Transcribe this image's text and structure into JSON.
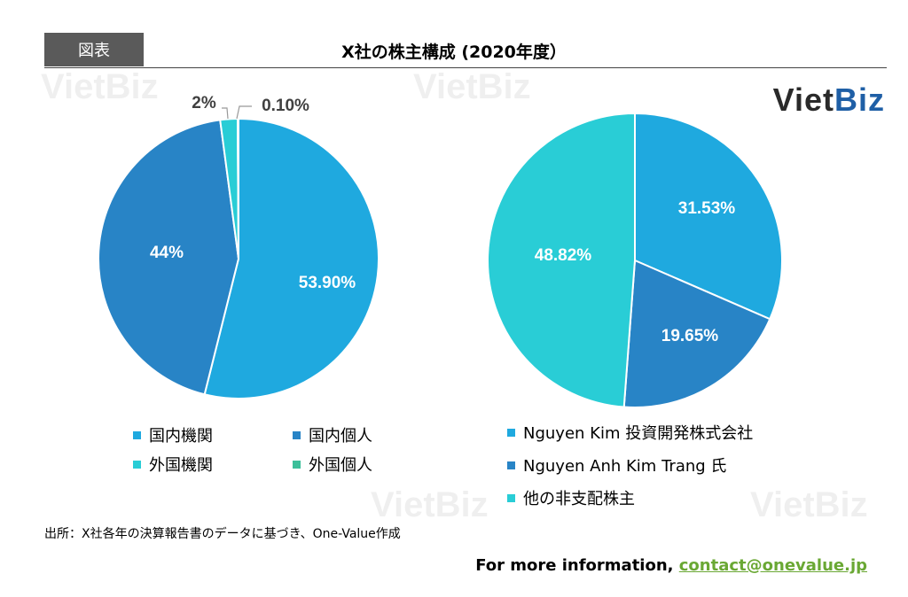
{
  "header": {
    "tag": "図表",
    "title": "X社の株主構成 (2020年度）"
  },
  "logo": {
    "part1": "Viet",
    "part2": "Biz"
  },
  "watermark": "VietBiz",
  "source": "出所：X社各年の決算報告書のデータに基づき、One-Value作成",
  "footer": {
    "text": "For more information, ",
    "link": "contact@onevalue.jp"
  },
  "chart_data": [
    {
      "type": "pie",
      "slices": [
        {
          "label": "国内機関",
          "value": 53.9,
          "value_label": "53.90%",
          "color": "#1fa9df"
        },
        {
          "label": "国内個人",
          "value": 44,
          "value_label": "44%",
          "color": "#2884c6"
        },
        {
          "label": "外国機関",
          "value": 2,
          "value_label": "2%",
          "color": "#29cdd6"
        },
        {
          "label": "外国個人",
          "value": 0.1,
          "value_label": "0.10%",
          "color": "#3cbf9a"
        }
      ]
    },
    {
      "type": "pie",
      "slices": [
        {
          "label": "Nguyen Kim 投資開発株式会社",
          "value": 31.53,
          "value_label": "31.53%",
          "color": "#1fa9df"
        },
        {
          "label": "Nguyen Anh Kim Trang 氏",
          "value": 19.65,
          "value_label": "19.65%",
          "color": "#2884c6"
        },
        {
          "label": "他の非支配株主",
          "value": 48.82,
          "value_label": "48.82%",
          "color": "#29cdd6"
        }
      ]
    }
  ]
}
